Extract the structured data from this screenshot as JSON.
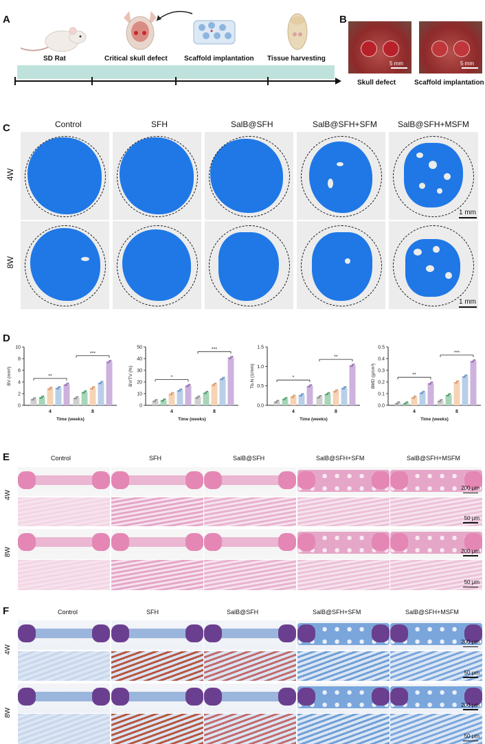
{
  "panels": {
    "A": "A",
    "B": "B",
    "C": "C",
    "D": "D",
    "E": "E",
    "F": "F"
  },
  "panelA": {
    "steps": [
      "SD Rat",
      "Critical skull defect",
      "Scaffold implantation",
      "Tissue harvesting"
    ]
  },
  "panelB": {
    "captions": [
      "Skull defect",
      "Scaffold implantation"
    ],
    "scale": "5 mm"
  },
  "groups": [
    "Control",
    "SFH",
    "SalB@SFH",
    "SalB@SFH+SFM",
    "SalB@SFH+MSFM"
  ],
  "rows": [
    "4W",
    "8W"
  ],
  "panelC": {
    "scale": "1 mm"
  },
  "panelE": {
    "scale_low": "200 μm",
    "scale_high": "50 μm"
  },
  "panelF": {
    "scale_low": "200 μm",
    "scale_high": "50 μm"
  },
  "chart_data": [
    {
      "type": "bar",
      "title": "",
      "ylabel": "BV (mm³)",
      "xlabel": "Time (weeks)",
      "categories": [
        "4",
        "8"
      ],
      "ylim": [
        0,
        10
      ],
      "yticks": [
        0,
        2,
        4,
        6,
        8,
        10
      ],
      "series": [
        {
          "name": "Control",
          "values": [
            1.1,
            1.3
          ]
        },
        {
          "name": "SFH",
          "values": [
            1.4,
            2.3
          ]
        },
        {
          "name": "SalB@SFH",
          "values": [
            2.9,
            3.0
          ]
        },
        {
          "name": "SalB@SFH+SFM",
          "values": [
            3.0,
            3.9
          ]
        },
        {
          "name": "SalB@SFH+MSFM",
          "values": [
            3.6,
            7.5
          ]
        }
      ],
      "significance": [
        "**",
        "***"
      ]
    },
    {
      "type": "bar",
      "title": "",
      "ylabel": "BV/TV (%)",
      "xlabel": "Time (weeks)",
      "categories": [
        "4",
        "8"
      ],
      "ylim": [
        0,
        50
      ],
      "yticks": [
        0,
        10,
        20,
        30,
        40,
        50
      ],
      "series": [
        {
          "name": "Control",
          "values": [
            4,
            7
          ]
        },
        {
          "name": "SFH",
          "values": [
            4.5,
            11
          ]
        },
        {
          "name": "SalB@SFH",
          "values": [
            10,
            18
          ]
        },
        {
          "name": "SalB@SFH+SFM",
          "values": [
            13,
            23
          ]
        },
        {
          "name": "SalB@SFH+MSFM",
          "values": [
            17,
            41
          ]
        }
      ],
      "significance": [
        "*",
        "***"
      ]
    },
    {
      "type": "bar",
      "title": "",
      "ylabel": "Tb.N (1/mm)",
      "xlabel": "Time (weeks)",
      "categories": [
        "4",
        "8"
      ],
      "ylim": [
        0,
        1.5
      ],
      "yticks": [
        0.0,
        0.5,
        1.0,
        1.5
      ],
      "series": [
        {
          "name": "Control",
          "values": [
            0.1,
            0.22
          ]
        },
        {
          "name": "SFH",
          "values": [
            0.17,
            0.3
          ]
        },
        {
          "name": "SalB@SFH",
          "values": [
            0.23,
            0.37
          ]
        },
        {
          "name": "SalB@SFH+SFM",
          "values": [
            0.27,
            0.45
          ]
        },
        {
          "name": "SalB@SFH+MSFM",
          "values": [
            0.5,
            1.03
          ]
        }
      ],
      "significance": [
        "*",
        "**"
      ]
    },
    {
      "type": "bar",
      "title": "",
      "ylabel": "BMD (g/cm³)",
      "xlabel": "Time (weeks)",
      "categories": [
        "4",
        "8"
      ],
      "ylim": [
        0,
        0.5
      ],
      "yticks": [
        0.0,
        0.1,
        0.2,
        0.3,
        0.4,
        0.5
      ],
      "series": [
        {
          "name": "Control",
          "values": [
            0.02,
            0.04
          ]
        },
        {
          "name": "SFH",
          "values": [
            0.02,
            0.09
          ]
        },
        {
          "name": "SalB@SFH",
          "values": [
            0.07,
            0.2
          ]
        },
        {
          "name": "SalB@SFH+SFM",
          "values": [
            0.11,
            0.25
          ]
        },
        {
          "name": "SalB@SFH+MSFM",
          "values": [
            0.19,
            0.38
          ]
        }
      ],
      "significance": [
        "**",
        "***"
      ]
    }
  ],
  "colors": {
    "bars": [
      "#cfcfcf",
      "#a8d5b8",
      "#f6d3b5",
      "#b9cfe8",
      "#cdb2dd"
    ],
    "dots": [
      "#888888",
      "#3b9b63",
      "#e3935b",
      "#5a8fce",
      "#9566b7"
    ],
    "ct": "#1f78e6",
    "timeline": "#bfe3dc",
    "he": "#e8a6c8",
    "mt": "#5d8fd0"
  }
}
